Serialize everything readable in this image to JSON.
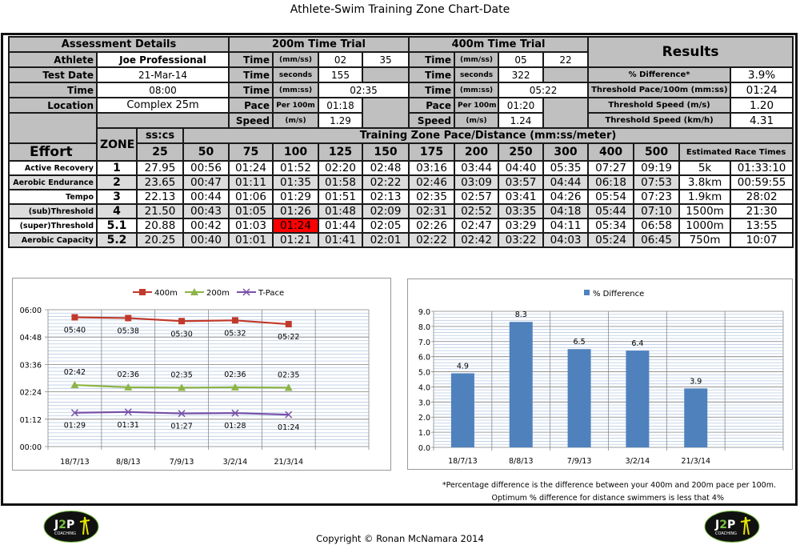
{
  "title": "Athlete-Swim Training Zone Chart-Date",
  "assessment": {
    "header": "Assessment Details",
    "athlete_label": "Athlete",
    "athlete": "Joe Professional",
    "date_label": "Test Date",
    "date": "21-Mar-14",
    "time_label": "Time",
    "time": "08:00",
    "location_label": "Location",
    "location": "Complex 25m"
  },
  "trial200": {
    "header": "200m Time Trial",
    "time_label": "Time",
    "pace_label": "Pace",
    "speed_label": "Speed",
    "unit_mmss": "(mm/ss)",
    "unit_seconds": "seconds",
    "unit_mmss2": "(mm:ss)",
    "unit_per100": "Per 100m",
    "unit_ms": "(m/s)",
    "min": "02",
    "sec": "35",
    "seconds": "155",
    "mmss": "02:35",
    "pace": "01:18",
    "speed": "1.29"
  },
  "trial400": {
    "header": "400m Time Trial",
    "time_label": "Time",
    "pace_label": "Pace",
    "speed_label": "Speed",
    "unit_mmss": "(mm/ss)",
    "unit_seconds": "seconds",
    "unit_mmss2": "(mm:ss)",
    "unit_per100": "Per 100m",
    "unit_ms": "(m/s)",
    "min": "05",
    "sec": "22",
    "seconds": "322",
    "mmss": "05:22",
    "pace": "01:20",
    "speed": "1.24"
  },
  "results": {
    "header": "Results",
    "rows": [
      {
        "label": "% Difference*",
        "value": "3.9%"
      },
      {
        "label": "Threshold Pace/100m (mm:ss)",
        "value": "01:24"
      },
      {
        "label": "Threshold Speed (m/s)",
        "value": "1.20"
      },
      {
        "label": "Threshold Speed (km/h)",
        "value": "4.31"
      }
    ]
  },
  "zones": {
    "effort_label": "Effort",
    "zone_label": "ZONE",
    "sscs_label": "ss:cs",
    "pace_header": "Training Zone Pace/Distance (mm:ss/meter)",
    "race_header": "Estimated Race Times",
    "distances": [
      "25",
      "50",
      "75",
      "100",
      "125",
      "150",
      "175",
      "200",
      "250",
      "300",
      "400",
      "500"
    ],
    "highlight_color": "#ff0000",
    "rows": [
      {
        "effort": "Active Recovery",
        "zone": "1",
        "values": [
          "27.95",
          "00:56",
          "01:24",
          "01:52",
          "02:20",
          "02:48",
          "03:16",
          "03:44",
          "04:40",
          "05:35",
          "07:27",
          "09:19"
        ],
        "race_dist": "5k",
        "race_time": "01:33:10"
      },
      {
        "effort": "Aerobic Endurance",
        "zone": "2",
        "values": [
          "23.65",
          "00:47",
          "01:11",
          "01:35",
          "01:58",
          "02:22",
          "02:46",
          "03:09",
          "03:57",
          "04:44",
          "06:18",
          "07:53"
        ],
        "race_dist": "3.8km",
        "race_time": "00:59:55"
      },
      {
        "effort": "Tempo",
        "zone": "3",
        "values": [
          "22.13",
          "00:44",
          "01:06",
          "01:29",
          "01:51",
          "02:13",
          "02:35",
          "02:57",
          "03:41",
          "04:26",
          "05:54",
          "07:23"
        ],
        "race_dist": "1.9km",
        "race_time": "28:02"
      },
      {
        "effort": "(sub)Threshold",
        "zone": "4",
        "values": [
          "21.50",
          "00:43",
          "01:05",
          "01:26",
          "01:48",
          "02:09",
          "02:31",
          "02:52",
          "03:35",
          "04:18",
          "05:44",
          "07:10"
        ],
        "race_dist": "1500m",
        "race_time": "21:30"
      },
      {
        "effort": "(super)Threshold",
        "zone": "5.1",
        "values": [
          "20.88",
          "00:42",
          "01:03",
          "01:24",
          "01:44",
          "02:05",
          "02:26",
          "02:47",
          "03:29",
          "04:11",
          "05:34",
          "06:58"
        ],
        "race_dist": "1000m",
        "race_time": "13:55",
        "highlight_index": 3
      },
      {
        "effort": "Aerobic Capacity",
        "zone": "5.2",
        "values": [
          "20.25",
          "00:40",
          "01:01",
          "01:21",
          "01:41",
          "02:01",
          "02:22",
          "02:42",
          "03:22",
          "04:03",
          "05:24",
          "06:45"
        ],
        "race_dist": "750m",
        "race_time": "10:07"
      }
    ]
  },
  "chart_data": [
    {
      "type": "line",
      "categories": [
        "18/7/13",
        "8/8/13",
        "7/9/13",
        "3/2/14",
        "21/3/14"
      ],
      "ylim": [
        "00:00",
        "06:00"
      ],
      "yticks": [
        "00:00",
        "01:12",
        "02:24",
        "03:36",
        "04:48",
        "06:00"
      ],
      "grid": true,
      "legend": "top",
      "series": [
        {
          "name": "400m",
          "color": "#c0392b",
          "marker": "square",
          "values": [
            "05:40",
            "05:38",
            "05:30",
            "05:32",
            "05:22"
          ],
          "label_pos": "below"
        },
        {
          "name": "200m",
          "color": "#8db446",
          "marker": "triangle",
          "values": [
            "02:42",
            "02:36",
            "02:35",
            "02:36",
            "02:35"
          ],
          "label_pos": "above"
        },
        {
          "name": "T-Pace",
          "color": "#7851a9",
          "marker": "x",
          "values": [
            "01:29",
            "01:31",
            "01:27",
            "01:28",
            "01:24"
          ],
          "label_pos": "below"
        }
      ]
    },
    {
      "type": "bar",
      "categories": [
        "18/7/13",
        "8/8/13",
        "7/9/13",
        "3/2/14",
        "21/3/14"
      ],
      "series": [
        {
          "name": "% Difference",
          "color": "#4f81bd",
          "values": [
            4.9,
            8.3,
            6.5,
            6.4,
            3.9
          ]
        }
      ],
      "ylim": [
        0,
        9
      ],
      "yticks": [
        "0.0",
        "1.0",
        "2.0",
        "3.0",
        "4.0",
        "5.0",
        "6.0",
        "7.0",
        "8.0",
        "9.0"
      ],
      "grid": true,
      "legend": "top"
    }
  ],
  "notes": [
    "*Percentage difference is the difference between your 400m and 200m pace per 100m.",
    "Optimum % difference for distance swimmers is less that 4%"
  ],
  "logo_text": "J2P COACHING",
  "copyright": "Copyright © Ronan McNamara 2014"
}
